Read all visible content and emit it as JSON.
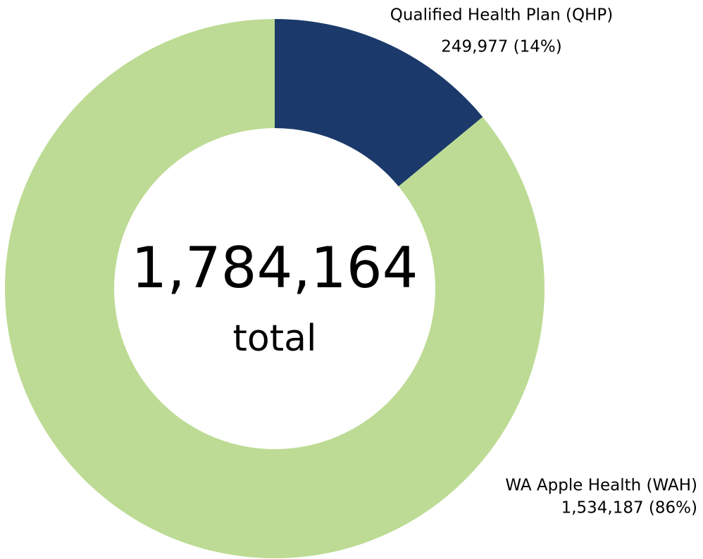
{
  "chart_data": {
    "type": "donut",
    "categories": [
      "Qualified Health Plan (QHP)",
      "WA Apple Health (WAH)"
    ],
    "values": [
      249977,
      1534187
    ],
    "value_labels": [
      "249,977 (14%)",
      "1,534,187 (86%)"
    ],
    "colors": [
      "#1b3a6b",
      "#bddb94"
    ],
    "center_label": "1,784,164",
    "center_sublabel": "total"
  }
}
